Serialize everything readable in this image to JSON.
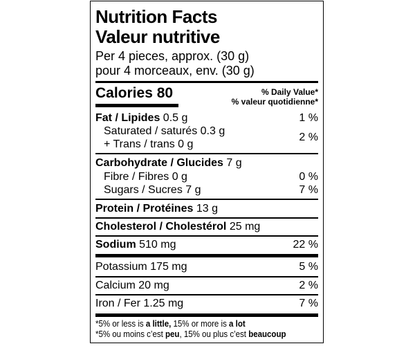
{
  "title_en": "Nutrition Facts",
  "title_fr": "Valeur nutritive",
  "serving_en": "Per 4 pieces, approx. (30 g)",
  "serving_fr": "pour 4 morceaux, env. (30 g)",
  "calories": "Calories 80",
  "dv_en": "% Daily Value*",
  "dv_fr": "% valeur quotidienne*",
  "nutrients": {
    "fat": {
      "name": "Fat / Lipides",
      "amount": "0.5 g",
      "dv": "1 %"
    },
    "saturated": {
      "name": "Saturated / saturés",
      "amount": "0.3 g"
    },
    "trans": {
      "name": "+ Trans / trans",
      "amount": "0 g"
    },
    "sat_trans_dv": "2 %",
    "carbohydrate": {
      "name": "Carbohydrate / Glucides",
      "amount": "7 g"
    },
    "fibre": {
      "name": "Fibre / Fibres",
      "amount": "0 g",
      "dv": "0 %"
    },
    "sugars": {
      "name": "Sugars / Sucres",
      "amount": "7 g",
      "dv": "7 %"
    },
    "protein": {
      "name": "Protein / Protéines",
      "amount": "13 g"
    },
    "cholesterol": {
      "name": "Cholesterol / Cholestérol",
      "amount": "25 mg"
    },
    "sodium": {
      "name": "Sodium",
      "amount": "510 mg",
      "dv": "22 %"
    },
    "potassium": {
      "name": "Potassium",
      "amount": "175 mg",
      "dv": "5 %"
    },
    "calcium": {
      "name": "Calcium",
      "amount": "20 mg",
      "dv": "2 %"
    },
    "iron": {
      "name": "Iron / Fer",
      "amount": "1.25 mg",
      "dv": "7 %"
    }
  },
  "footnote_en": {
    "a": "*5% or less is ",
    "b": "a little,",
    "c": " 15% or more is ",
    "d": "a lot"
  },
  "footnote_fr": {
    "a": "*5% ou moins c’est ",
    "b": "peu",
    ",c": "",
    "c": ", 15% ou plus c’est ",
    "d": "beaucoup"
  }
}
